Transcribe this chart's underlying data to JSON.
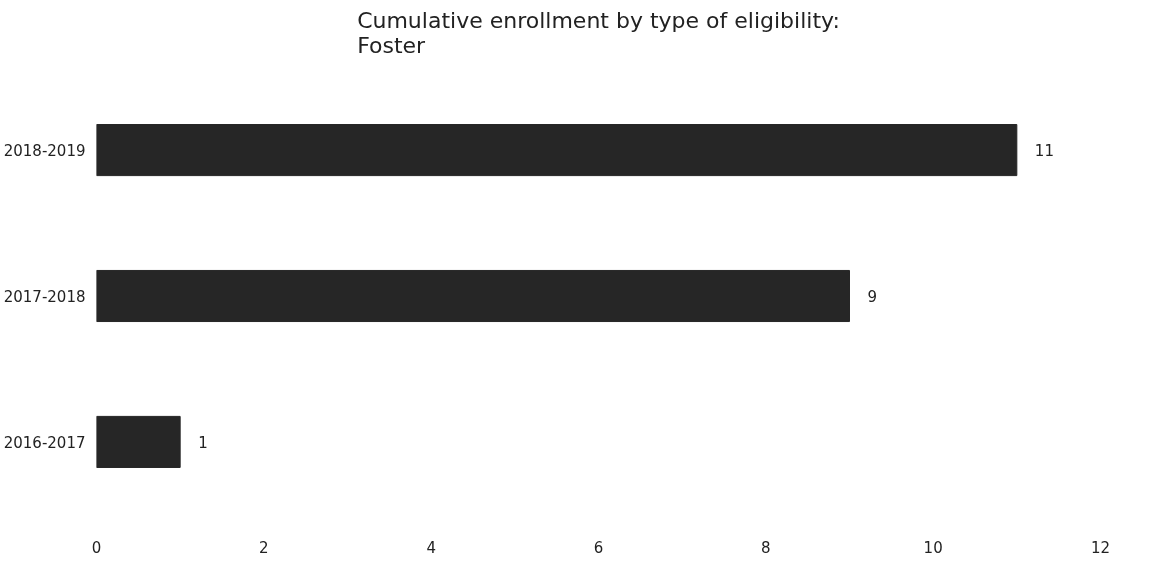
{
  "chart_data": {
    "type": "bar",
    "orientation": "horizontal",
    "title": "Cumulative enrollment by type of eligibility:\nFoster",
    "categories": [
      "2018-2019",
      "2017-2018",
      "2016-2017"
    ],
    "values": [
      11,
      9,
      1
    ],
    "color": "#262626",
    "xlim": [
      0,
      12
    ],
    "xticks": [
      0,
      2,
      4,
      6,
      8,
      10,
      12
    ],
    "grid": false,
    "data_labels": true
  }
}
